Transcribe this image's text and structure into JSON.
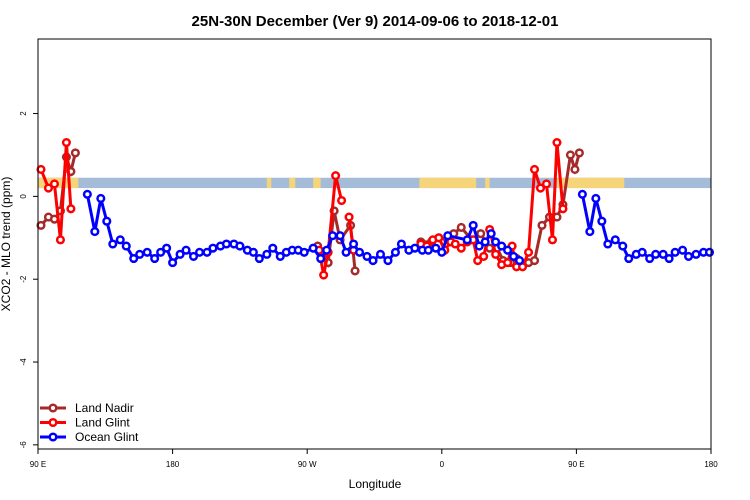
{
  "chart_data": {
    "type": "line",
    "title": "25N-30N December (Ver 9)   2014-09-06 to 2018-12-01",
    "xlabel": "Longitude",
    "ylabel": "XCO2 - MLO trend (ppm)",
    "xlim": [
      90,
      540
    ],
    "ylim": [
      -6.1,
      3.8
    ],
    "x_ticks": [
      {
        "value": 90,
        "label": "90 E"
      },
      {
        "value": 180,
        "label": "180"
      },
      {
        "value": 270,
        "label": "90 W"
      },
      {
        "value": 360,
        "label": "0"
      },
      {
        "value": 450,
        "label": "90 E"
      },
      {
        "value": 540,
        "label": "180"
      }
    ],
    "y_ticks": [
      {
        "value": 2,
        "label": "2"
      },
      {
        "value": 0,
        "label": "0"
      },
      {
        "value": -2,
        "label": "-2"
      },
      {
        "value": -4,
        "label": "-4"
      },
      {
        "value": -6,
        "label": "-6"
      }
    ],
    "band": {
      "y_range": [
        0.2,
        0.45
      ],
      "ocean_color": "#a4bcd8",
      "land_color": "#f5d47a",
      "land_segments": [
        [
          90,
          117
        ],
        [
          243,
          246
        ],
        [
          258,
          262
        ],
        [
          274,
          279
        ],
        [
          345,
          383
        ],
        [
          389,
          392
        ],
        [
          437,
          482
        ]
      ]
    },
    "legend": {
      "position": "bottom-left",
      "entries": [
        {
          "label": "Land Nadir",
          "color": "#a52a2a"
        },
        {
          "label": "Land Glint",
          "color": "#ff0000"
        },
        {
          "label": "Ocean Glint",
          "color": "#0000ff"
        }
      ]
    },
    "series": [
      {
        "name": "Land Nadir",
        "color": "#a52a2a",
        "segments": [
          [
            [
              92,
              -0.7
            ],
            [
              97,
              -0.5
            ],
            [
              101,
              -0.55
            ],
            [
              105,
              -0.35
            ],
            [
              109,
              0.95
            ],
            [
              112,
              0.6
            ],
            [
              115,
              1.05
            ]
          ],
          [
            [
              277,
              -1.2
            ],
            [
              281,
              -1.35
            ],
            [
              284,
              -1.6
            ],
            [
              288,
              -0.35
            ],
            [
              292,
              -1.05
            ],
            [
              299,
              -0.7
            ],
            [
              302,
              -1.8
            ]
          ],
          [
            [
              346,
              -1.1
            ],
            [
              353,
              -1.1
            ],
            [
              358,
              -1.0
            ],
            [
              364,
              -1.05
            ],
            [
              368,
              -0.9
            ],
            [
              373,
              -0.75
            ],
            [
              380,
              -1.05
            ],
            [
              386,
              -0.9
            ],
            [
              392,
              -1.25
            ],
            [
              397,
              -1.25
            ],
            [
              401,
              -1.55
            ],
            [
              406,
              -1.6
            ],
            [
              410,
              -1.5
            ],
            [
              413,
              -1.65
            ],
            [
              418,
              -1.6
            ],
            [
              422,
              -1.55
            ],
            [
              427,
              -0.7
            ],
            [
              432,
              -0.5
            ],
            [
              437,
              -0.5
            ],
            [
              441,
              -0.2
            ],
            [
              446,
              1.0
            ],
            [
              449,
              0.65
            ],
            [
              452,
              1.05
            ]
          ]
        ]
      },
      {
        "name": "Land Glint",
        "color": "#ff0000",
        "segments": [
          [
            [
              92,
              0.65
            ],
            [
              97,
              0.2
            ],
            [
              101,
              0.3
            ],
            [
              105,
              -1.05
            ],
            [
              109,
              1.3
            ],
            [
              112,
              -0.3
            ]
          ],
          [
            [
              278,
              -1.3
            ],
            [
              281,
              -1.9
            ],
            [
              284,
              -1.35
            ],
            [
              289,
              0.5
            ],
            [
              293,
              -0.1
            ]
          ],
          [
            [
              298,
              -0.5
            ],
            [
              301,
              -1.3
            ]
          ],
          [
            [
              346,
              -1.15
            ],
            [
              350,
              -1.2
            ],
            [
              354,
              -1.05
            ],
            [
              358,
              -1.0
            ],
            [
              362,
              -1.3
            ],
            [
              366,
              -1.1
            ],
            [
              369,
              -1.15
            ],
            [
              373,
              -1.25
            ],
            [
              377,
              -1.1
            ],
            [
              381,
              -1.05
            ],
            [
              384,
              -1.55
            ],
            [
              388,
              -1.45
            ],
            [
              392,
              -0.8
            ],
            [
              396,
              -1.4
            ],
            [
              400,
              -1.65
            ],
            [
              404,
              -1.6
            ],
            [
              407,
              -1.2
            ],
            [
              410,
              -1.7
            ],
            [
              414,
              -1.7
            ],
            [
              418,
              -1.35
            ],
            [
              422,
              0.65
            ],
            [
              426,
              0.2
            ],
            [
              430,
              0.3
            ],
            [
              434,
              -1.05
            ],
            [
              437,
              1.3
            ],
            [
              441,
              -0.3
            ]
          ]
        ]
      },
      {
        "name": "Ocean Glint",
        "color": "#0000ff",
        "segments": [
          [
            [
              123,
              0.05
            ],
            [
              128,
              -0.85
            ],
            [
              132,
              -0.05
            ],
            [
              136,
              -0.6
            ],
            [
              140,
              -1.15
            ],
            [
              145,
              -1.05
            ],
            [
              149,
              -1.2
            ],
            [
              154,
              -1.5
            ],
            [
              158,
              -1.4
            ],
            [
              163,
              -1.35
            ],
            [
              168,
              -1.5
            ],
            [
              172,
              -1.35
            ],
            [
              176,
              -1.25
            ],
            [
              180,
              -1.6
            ],
            [
              185,
              -1.4
            ],
            [
              189,
              -1.3
            ],
            [
              194,
              -1.45
            ],
            [
              198,
              -1.35
            ],
            [
              203,
              -1.35
            ],
            [
              207,
              -1.25
            ],
            [
              212,
              -1.2
            ],
            [
              216,
              -1.15
            ],
            [
              221,
              -1.15
            ],
            [
              225,
              -1.2
            ],
            [
              230,
              -1.3
            ],
            [
              234,
              -1.35
            ],
            [
              238,
              -1.5
            ],
            [
              243,
              -1.4
            ],
            [
              247,
              -1.25
            ],
            [
              252,
              -1.45
            ],
            [
              256,
              -1.35
            ],
            [
              260,
              -1.3
            ],
            [
              264,
              -1.3
            ],
            [
              268,
              -1.35
            ],
            [
              274,
              -1.25
            ],
            [
              279,
              -1.5
            ],
            [
              283,
              -1.3
            ],
            [
              287,
              -0.95
            ],
            [
              292,
              -0.95
            ],
            [
              296,
              -1.35
            ],
            [
              301,
              -1.15
            ],
            [
              305,
              -1.35
            ],
            [
              310,
              -1.45
            ],
            [
              314,
              -1.55
            ],
            [
              319,
              -1.4
            ],
            [
              324,
              -1.55
            ],
            [
              329,
              -1.35
            ],
            [
              333,
              -1.15
            ],
            [
              338,
              -1.3
            ],
            [
              342,
              -1.25
            ],
            [
              347,
              -1.3
            ],
            [
              351,
              -1.3
            ],
            [
              356,
              -1.25
            ],
            [
              360,
              -1.35
            ],
            [
              364,
              -0.95
            ],
            [
              377,
              -1.05
            ],
            [
              381,
              -0.7
            ],
            [
              385,
              -1.2
            ],
            [
              389,
              -1.1
            ],
            [
              393,
              -0.9
            ],
            [
              396,
              -1.1
            ],
            [
              400,
              -1.2
            ],
            [
              404,
              -1.3
            ],
            [
              408,
              -1.45
            ],
            [
              412,
              -1.55
            ]
          ],
          [
            [
              454,
              0.05
            ],
            [
              459,
              -0.85
            ],
            [
              463,
              -0.05
            ],
            [
              467,
              -0.6
            ],
            [
              471,
              -1.15
            ],
            [
              476,
              -1.05
            ],
            [
              481,
              -1.2
            ],
            [
              485,
              -1.5
            ],
            [
              490,
              -1.4
            ],
            [
              494,
              -1.35
            ],
            [
              499,
              -1.5
            ],
            [
              503,
              -1.4
            ],
            [
              508,
              -1.4
            ],
            [
              512,
              -1.5
            ],
            [
              516,
              -1.35
            ],
            [
              521,
              -1.3
            ],
            [
              525,
              -1.45
            ],
            [
              530,
              -1.4
            ],
            [
              535,
              -1.35
            ],
            [
              539,
              -1.35
            ]
          ]
        ]
      }
    ]
  }
}
